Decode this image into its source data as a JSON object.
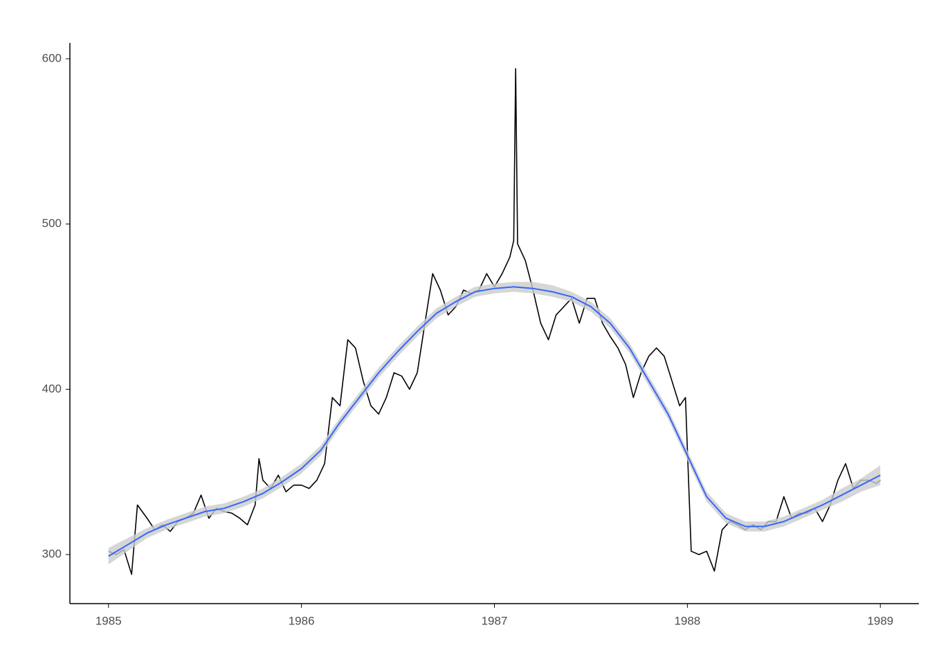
{
  "chart_data": {
    "type": "line",
    "xlim": [
      1984.8,
      1989.2
    ],
    "ylim": [
      270.3,
      609.6
    ],
    "xticks": [
      1985,
      1986,
      1987,
      1988,
      1989
    ],
    "yticks": [
      300,
      400,
      500,
      600
    ],
    "grid": false,
    "series": [
      {
        "color": "#000000",
        "x": [
          1985.0,
          1985.04,
          1985.08,
          1985.12,
          1985.15,
          1985.2,
          1985.24,
          1985.28,
          1985.32,
          1985.36,
          1985.4,
          1985.44,
          1985.48,
          1985.52,
          1985.56,
          1985.6,
          1985.64,
          1985.68,
          1985.72,
          1985.76,
          1985.78,
          1985.8,
          1985.84,
          1985.88,
          1985.92,
          1985.96,
          1986.0,
          1986.04,
          1986.08,
          1986.12,
          1986.16,
          1986.2,
          1986.24,
          1986.28,
          1986.32,
          1986.36,
          1986.4,
          1986.44,
          1986.48,
          1986.52,
          1986.56,
          1986.6,
          1986.64,
          1986.68,
          1986.72,
          1986.76,
          1986.8,
          1986.84,
          1986.88,
          1986.92,
          1986.96,
          1987.0,
          1987.04,
          1987.08,
          1987.1,
          1987.11,
          1987.12,
          1987.16,
          1987.2,
          1987.24,
          1987.28,
          1987.32,
          1987.36,
          1987.4,
          1987.44,
          1987.48,
          1987.52,
          1987.56,
          1987.6,
          1987.64,
          1987.68,
          1987.72,
          1987.76,
          1987.8,
          1987.84,
          1987.88,
          1987.92,
          1987.96,
          1987.99,
          1988.02,
          1988.06,
          1988.1,
          1988.14,
          1988.18,
          1988.22,
          1988.26,
          1988.3,
          1988.34,
          1988.38,
          1988.42,
          1988.46,
          1988.5,
          1988.54,
          1988.58,
          1988.62,
          1988.66,
          1988.7,
          1988.74,
          1988.78,
          1988.82,
          1988.86,
          1988.9,
          1988.94,
          1988.98,
          1989.0
        ],
        "values": [
          302,
          300,
          303,
          288,
          330,
          322,
          315,
          318,
          314,
          320,
          322,
          325,
          336,
          322,
          328,
          326,
          325,
          322,
          318,
          330,
          358,
          345,
          340,
          348,
          338,
          342,
          342,
          340,
          345,
          355,
          395,
          390,
          430,
          425,
          405,
          390,
          385,
          395,
          410,
          408,
          400,
          410,
          440,
          470,
          460,
          445,
          450,
          460,
          458,
          460,
          470,
          462,
          470,
          480,
          490,
          594,
          488,
          478,
          460,
          440,
          430,
          445,
          450,
          455,
          440,
          455,
          455,
          440,
          432,
          425,
          415,
          395,
          410,
          420,
          425,
          420,
          405,
          390,
          395,
          302,
          300,
          302,
          290,
          315,
          320,
          318,
          315,
          318,
          315,
          320,
          320,
          335,
          322,
          325,
          325,
          328,
          320,
          330,
          345,
          355,
          340,
          345,
          345,
          343,
          345
        ]
      },
      {
        "color": "#3366ff",
        "band_color": "#cccccc",
        "x": [
          1985.0,
          1985.1,
          1985.2,
          1985.3,
          1985.4,
          1985.5,
          1985.6,
          1985.7,
          1985.8,
          1985.9,
          1986.0,
          1986.1,
          1986.2,
          1986.3,
          1986.4,
          1986.5,
          1986.6,
          1986.7,
          1986.8,
          1986.9,
          1987.0,
          1987.1,
          1987.2,
          1987.3,
          1987.4,
          1987.5,
          1987.6,
          1987.7,
          1987.8,
          1987.9,
          1988.0,
          1988.1,
          1988.2,
          1988.3,
          1988.4,
          1988.5,
          1988.6,
          1988.7,
          1988.8,
          1988.9,
          1989.0
        ],
        "values": [
          299,
          306,
          313,
          318,
          322,
          326,
          328,
          332,
          337,
          344,
          352,
          363,
          380,
          395,
          410,
          423,
          435,
          446,
          453,
          459,
          461,
          462,
          461,
          459,
          456,
          450,
          440,
          425,
          405,
          385,
          360,
          335,
          322,
          317,
          317,
          320,
          325,
          330,
          336,
          342,
          348
        ],
        "lower": [
          294,
          302,
          310,
          315,
          319,
          323,
          325,
          329,
          334,
          341,
          349,
          360,
          377,
          392,
          407,
          420,
          432,
          443,
          450,
          456,
          458,
          459,
          458,
          456,
          453,
          447,
          437,
          422,
          402,
          382,
          357,
          332,
          319,
          314,
          314,
          317,
          322,
          327,
          332,
          338,
          342
        ],
        "upper": [
          304,
          310,
          316,
          321,
          325,
          329,
          331,
          335,
          340,
          347,
          355,
          366,
          383,
          398,
          413,
          426,
          438,
          449,
          456,
          462,
          464,
          465,
          465,
          463,
          459,
          453,
          443,
          428,
          408,
          388,
          363,
          338,
          325,
          320,
          320,
          323,
          328,
          333,
          340,
          346,
          354
        ]
      }
    ]
  }
}
